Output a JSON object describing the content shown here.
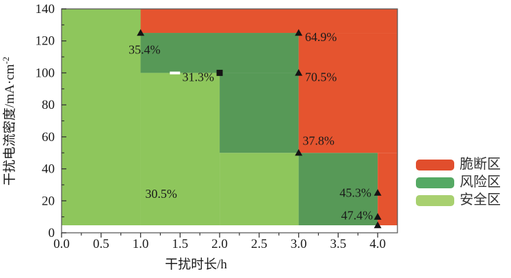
{
  "chart_data": {
    "type": "area",
    "title": "",
    "xlabel": "干扰时长/h",
    "ylabel": "干扰电流密度/mA·cm⁻²",
    "ylabel_base": "干扰电流密度/mA·cm",
    "ylabel_superscript": "-2",
    "xlim": [
      0,
      4.25
    ],
    "ylim": [
      0,
      140
    ],
    "grid": false,
    "x_tick_values": [
      0.0,
      0.5,
      1.0,
      1.5,
      2.0,
      2.5,
      3.0,
      3.5,
      4.0
    ],
    "x_tick_labels": [
      "0.0",
      "0.5",
      "1.0",
      "1.5",
      "2.0",
      "2.5",
      "3.0",
      "3.5",
      "4.0"
    ],
    "x_minor_tick_values": [
      0.25,
      0.75,
      1.25,
      1.75,
      2.25,
      2.75,
      3.25,
      3.75
    ],
    "y_tick_values": [
      0,
      20,
      40,
      60,
      80,
      100,
      120,
      140
    ],
    "y_tick_labels": [
      "0",
      "20",
      "40",
      "60",
      "80",
      "100",
      "120",
      "140"
    ],
    "y_minor_tick_values": [
      10,
      30,
      50,
      70,
      90,
      110,
      130
    ],
    "fill_baseline_y": 4.7,
    "regions": [
      {
        "name": "safe-zone",
        "color": "#8EC65C",
        "rects": [
          [
            0,
            4.7,
            1,
            140
          ],
          [
            1,
            4.7,
            2,
            100
          ],
          [
            2,
            4.7,
            3,
            50
          ]
        ]
      },
      {
        "name": "risk-zone",
        "color": "#579957",
        "rects": [
          [
            1,
            100,
            3,
            125
          ],
          [
            2,
            50,
            3,
            100
          ],
          [
            3,
            4.7,
            4,
            50
          ]
        ]
      },
      {
        "name": "brittle-zone",
        "color": "#E5542F",
        "rects": [
          [
            1,
            125,
            4.25,
            140
          ],
          [
            3,
            50,
            4.25,
            125
          ],
          [
            4,
            4.7,
            4.25,
            50
          ]
        ]
      }
    ],
    "markers": [
      {
        "x": 1,
        "y": 125,
        "shape": "triangle"
      },
      {
        "x": 3,
        "y": 125,
        "shape": "triangle"
      },
      {
        "x": 2,
        "y": 100,
        "shape": "square"
      },
      {
        "x": 3,
        "y": 100,
        "shape": "triangle"
      },
      {
        "x": 3,
        "y": 50,
        "shape": "triangle"
      },
      {
        "x": 4,
        "y": 25,
        "shape": "triangle"
      },
      {
        "x": 4,
        "y": 10,
        "shape": "triangle"
      },
      {
        "x": 4,
        "y": 4.7,
        "shape": "triangle"
      }
    ],
    "annotations": [
      {
        "text": "35.4%",
        "x": 1.05,
        "y": 114.5,
        "anchor": "middle"
      },
      {
        "text": "64.9%",
        "x": 3.08,
        "y": 122.5,
        "anchor": "start"
      },
      {
        "text": "31.3%",
        "x": 1.93,
        "y": 97.5,
        "anchor": "end"
      },
      {
        "text": "70.5%",
        "x": 3.08,
        "y": 97.5,
        "anchor": "start"
      },
      {
        "text": "37.8%",
        "x": 3.05,
        "y": 57.5,
        "anchor": "start"
      },
      {
        "text": "30.5%",
        "x": 1.26,
        "y": 24.5,
        "anchor": "middle"
      },
      {
        "text": "45.3%",
        "x": 3.92,
        "y": 25,
        "anchor": "end"
      },
      {
        "text": "47.4%",
        "x": 3.94,
        "y": 11,
        "anchor": "end"
      }
    ],
    "legend": {
      "position": "right-outside",
      "entries": [
        {
          "label": "脆断区",
          "color": "#E14E2D"
        },
        {
          "label": "风险区",
          "color": "#55A964"
        },
        {
          "label": "安全区",
          "color": "#A8D06F"
        }
      ]
    },
    "colors": {
      "safe": "#8EC65C",
      "risk": "#579957",
      "brittle": "#E5542F",
      "marker": "#151515",
      "axis_border": "#5b5b5b",
      "tick": "#333333",
      "text": "#1a1a1a"
    }
  }
}
